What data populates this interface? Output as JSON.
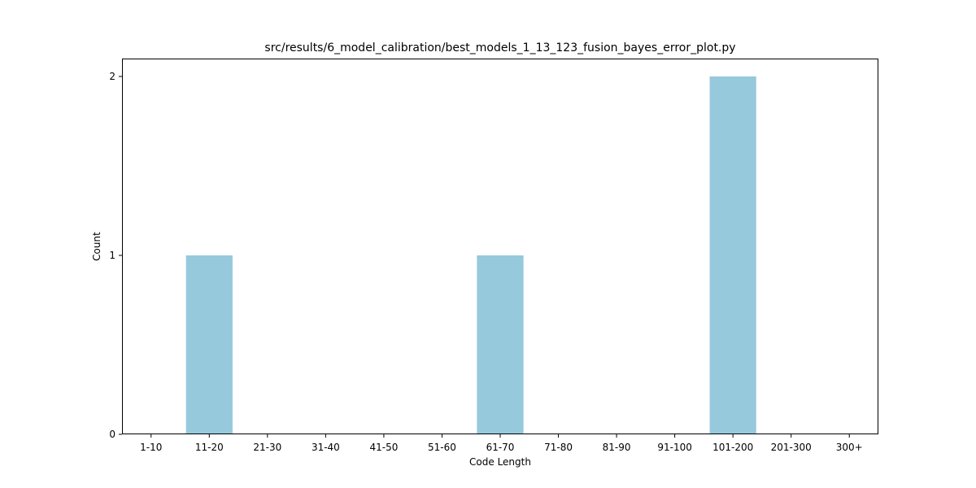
{
  "chart_data": {
    "type": "bar",
    "title": "src/results/6_model_calibration/best_models_1_13_123_fusion_bayes_error_plot.py",
    "xlabel": "Code Length",
    "ylabel": "Count",
    "categories": [
      "1-10",
      "11-20",
      "21-30",
      "31-40",
      "41-50",
      "51-60",
      "61-70",
      "71-80",
      "81-90",
      "91-100",
      "101-200",
      "201-300",
      "300+"
    ],
    "values": [
      0,
      1,
      0,
      0,
      0,
      0,
      1,
      0,
      0,
      0,
      2,
      0,
      0
    ],
    "ylim": [
      0,
      2.1
    ],
    "yticks": [
      0,
      1,
      2
    ],
    "grid": false,
    "legend": "none",
    "bar_color": "#96c9dc"
  }
}
